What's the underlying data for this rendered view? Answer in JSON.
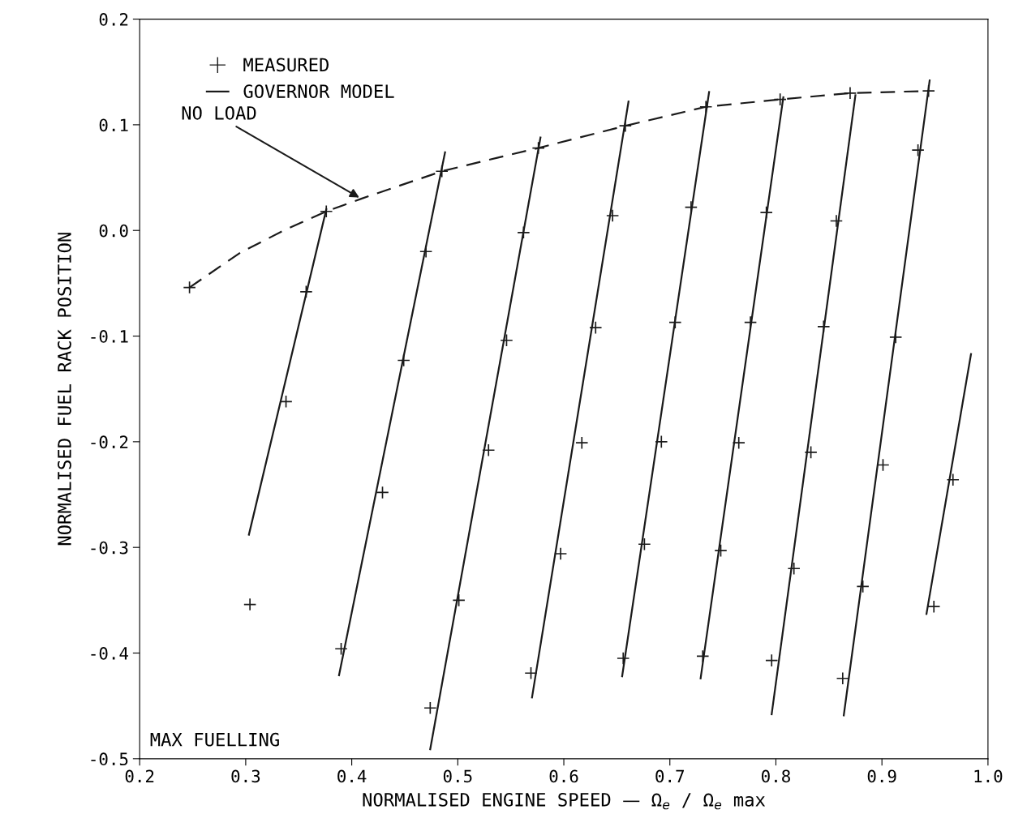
{
  "chart_data": {
    "type": "line",
    "xlabel": "NORMALISED ENGINE SPEED — Ω$_{e}$ / Ω$_{e}$ max",
    "ylabel": "NORMALISED FUEL RACK POSITION",
    "xlim": [
      0.2,
      1.0
    ],
    "xticks": [
      0.2,
      0.3,
      0.4,
      0.5,
      0.6,
      0.7,
      0.8,
      0.9,
      {
        "value": 1,
        "label": "1.0"
      }
    ],
    "ylim": [
      -0.5,
      0.2
    ],
    "yticks": [
      -0.5,
      -0.4,
      -0.3,
      -0.2,
      -0.1,
      {
        "value": 0,
        "label": "0.0"
      },
      0.1,
      0.2
    ],
    "grid": false,
    "legend": "top left",
    "annotations": [
      {
        "text": "NO LOAD",
        "x": 0.409,
        "y": 0.03
      },
      "MAX FUELLING"
    ],
    "series": [
      {
        "name": "MEASURED",
        "type": "scatter",
        "marker": "cross",
        "color": "#1a1a1a",
        "x": [
          0.247,
          0.376,
          0.357,
          0.338,
          0.304,
          0.485,
          0.47,
          0.449,
          0.429,
          0.39,
          0.576,
          0.562,
          0.546,
          0.529,
          0.501,
          0.474,
          0.658,
          0.646,
          0.63,
          0.617,
          0.597,
          0.569,
          0.734,
          0.72,
          0.705,
          0.692,
          0.676,
          0.656,
          0.804,
          0.791,
          0.776,
          0.765,
          0.748,
          0.731,
          0.87,
          0.857,
          0.845,
          0.833,
          0.817,
          0.796,
          0.944,
          0.934,
          0.913,
          0.901,
          0.882,
          0.863,
          0.967,
          0.949
        ],
        "values": [
          -0.054,
          0.018,
          -0.058,
          -0.162,
          -0.354,
          0.056,
          -0.02,
          -0.123,
          -0.248,
          -0.396,
          0.078,
          -0.002,
          -0.104,
          -0.208,
          -0.35,
          -0.452,
          0.099,
          0.014,
          -0.092,
          -0.201,
          -0.306,
          -0.419,
          0.117,
          0.022,
          -0.087,
          -0.2,
          -0.297,
          -0.405,
          0.124,
          0.017,
          -0.087,
          -0.201,
          -0.303,
          -0.403,
          0.13,
          0.009,
          -0.091,
          -0.21,
          -0.32,
          -0.407,
          0.132,
          0.076,
          -0.101,
          -0.222,
          -0.337,
          -0.424,
          -0.236,
          -0.356
        ]
      },
      {
        "name": "GOVERNOR MODEL",
        "color": "#1a1a1a",
        "line_style": "solid",
        "x": [
          0.376,
          0.303
        ],
        "values": [
          0.02,
          -0.288
        ]
      },
      {
        "color": "#1a1a1a",
        "line_style": "solid",
        "x": [
          0.488,
          0.388
        ],
        "values": [
          0.074,
          -0.421
        ]
      },
      {
        "color": "#1a1a1a",
        "line_style": "solid",
        "x": [
          0.578,
          0.474
        ],
        "values": [
          0.088,
          -0.491
        ]
      },
      {
        "color": "#1a1a1a",
        "line_style": "solid",
        "x": [
          0.661,
          0.57
        ],
        "values": [
          0.122,
          -0.442
        ]
      },
      {
        "color": "#1a1a1a",
        "line_style": "solid",
        "x": [
          0.737,
          0.655
        ],
        "values": [
          0.131,
          -0.422
        ]
      },
      {
        "color": "#1a1a1a",
        "line_style": "solid",
        "x": [
          0.807,
          0.729
        ],
        "values": [
          0.126,
          -0.424
        ]
      },
      {
        "color": "#1a1a1a",
        "line_style": "solid",
        "x": [
          0.875,
          0.796
        ],
        "values": [
          0.128,
          -0.458
        ]
      },
      {
        "color": "#1a1a1a",
        "line_style": "solid",
        "x": [
          0.945,
          0.864
        ],
        "values": [
          0.142,
          -0.459
        ]
      },
      {
        "color": "#1a1a1a",
        "line_style": "solid",
        "x": [
          0.984,
          0.942
        ],
        "values": [
          -0.117,
          -0.363
        ]
      },
      {
        "color": "#1a1a1a",
        "line_style": "dashed",
        "x": [
          0.247,
          0.295,
          0.336,
          0.376,
          0.409,
          0.485,
          0.538,
          0.576,
          0.658,
          0.734,
          0.804,
          0.87,
          0.944
        ],
        "values": [
          -0.054,
          -0.021,
          0.0,
          0.018,
          0.03,
          0.056,
          0.069,
          0.078,
          0.099,
          0.117,
          0.124,
          0.13,
          0.132
        ]
      }
    ]
  }
}
